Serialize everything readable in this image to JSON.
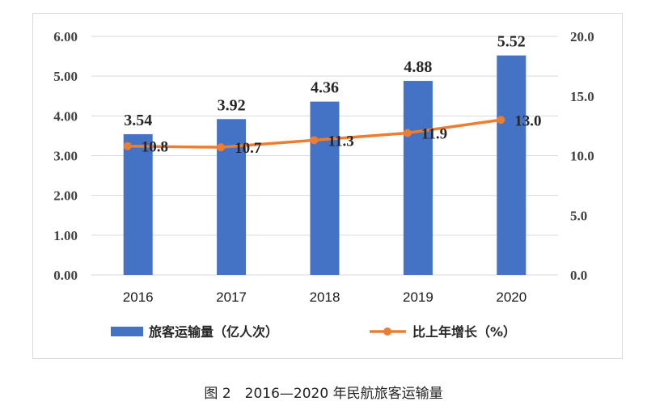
{
  "chart_data": {
    "type": "bar",
    "categories": [
      "2016",
      "2017",
      "2018",
      "2019",
      "2020"
    ],
    "series": [
      {
        "name": "旅客运输量（亿人次）",
        "type": "bar",
        "axis": "left",
        "values": [
          3.54,
          3.92,
          4.36,
          4.88,
          5.52
        ],
        "labels": [
          "3.54",
          "3.92",
          "4.36",
          "4.88",
          "5.52"
        ],
        "color": "#4472c4"
      },
      {
        "name": "比上年增长（%）",
        "type": "line",
        "axis": "right",
        "values": [
          10.8,
          10.7,
          11.3,
          11.9,
          13.0
        ],
        "labels": [
          "10.8",
          "10.7",
          "11.3",
          "11.9",
          "13.0"
        ],
        "color": "#ed7d31"
      }
    ],
    "y_left": {
      "ylim": [
        0,
        6
      ],
      "ticks": [
        "0.00",
        "1.00",
        "2.00",
        "3.00",
        "4.00",
        "5.00",
        "6.00"
      ]
    },
    "y_right": {
      "ylim": [
        0,
        20
      ],
      "ticks": [
        "0.0",
        "5.0",
        "10.0",
        "15.0",
        "20.0"
      ]
    },
    "grid": true,
    "legend_position": "bottom"
  },
  "caption": "图 2　2016—2020 年民航旅客运输量"
}
